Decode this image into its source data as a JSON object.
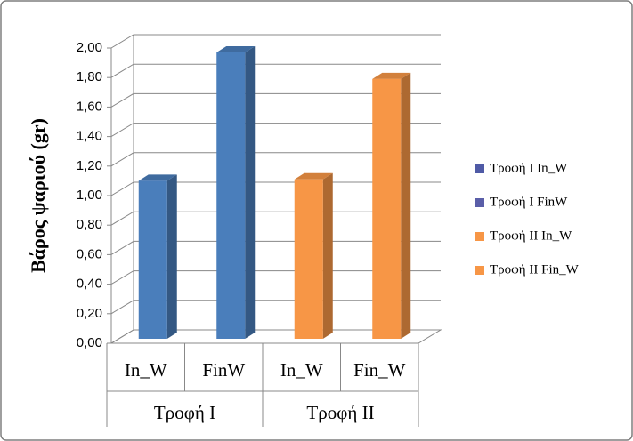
{
  "chart_data": {
    "type": "bar3d",
    "y_label": "Βάρος ψαριού (gr)",
    "ylim": [
      0,
      2
    ],
    "yticks": [
      {
        "value": 0,
        "label": "0,00"
      },
      {
        "value": 0.2,
        "label": "0,20"
      },
      {
        "value": 0.4,
        "label": "0,40"
      },
      {
        "value": 0.6,
        "label": "0,60"
      },
      {
        "value": 0.8,
        "label": "0,80"
      },
      {
        "value": 1,
        "label": "1,00"
      },
      {
        "value": 1.2,
        "label": "1,20"
      },
      {
        "value": 1.4,
        "label": "1,40"
      },
      {
        "value": 1.6,
        "label": "1,60"
      },
      {
        "value": 1.8,
        "label": "1,80"
      },
      {
        "value": 2,
        "label": "2,00"
      }
    ],
    "grid": true,
    "groups": [
      {
        "name": "Τροφή I",
        "categories": [
          "In_W",
          "FinW"
        ]
      },
      {
        "name": "Τροφή II",
        "categories": [
          "In_W",
          "Fin_W"
        ]
      }
    ],
    "series": [
      {
        "name": "Τροφή I In_W",
        "color": "#4a7ebb",
        "legend_color": "#4f5aa6",
        "values": [
          1.07,
          null,
          null,
          null
        ]
      },
      {
        "name": "Τροφή I FinW",
        "color": "#4a7ebb",
        "legend_color": "#5a5ea8",
        "values": [
          null,
          1.94,
          null,
          null
        ]
      },
      {
        "name": "Τροφή II In_W",
        "color": "#f79646",
        "legend_color": "#f79646",
        "values": [
          null,
          null,
          1.08,
          null
        ]
      },
      {
        "name": "Τροφή II Fin_W",
        "color": "#f79646",
        "legend_color": "#f79646",
        "values": [
          null,
          null,
          null,
          1.76
        ]
      }
    ],
    "legend": "right"
  }
}
